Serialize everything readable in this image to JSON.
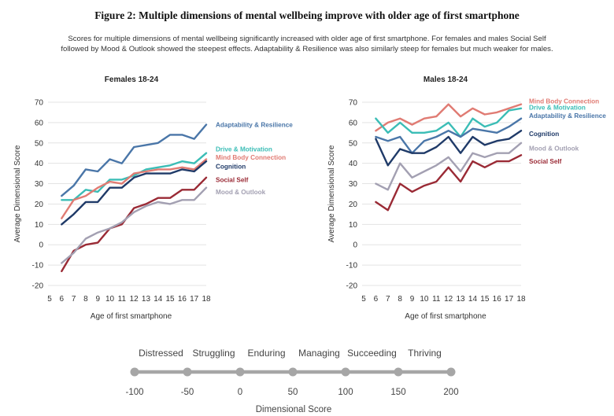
{
  "figure": {
    "title": "Figure 2:  Multiple dimensions of mental wellbeing improve with older age of first smartphone",
    "caption_line1": "Scores for multiple dimensions of mental wellbeing significantly increased with older age of first smartphone. For females and males Social Self",
    "caption_line2": "followed by Mood & Outlook showed the steepest effects. Adaptability & Resilience was also similarly steep for females but much weaker for males."
  },
  "chart_data": [
    {
      "type": "line",
      "title": "Females 18-24",
      "xlabel": "Age of first smartphone",
      "ylabel": "Average Dimensional Score",
      "x_ticks": [
        5,
        6,
        7,
        8,
        9,
        10,
        11,
        12,
        13,
        14,
        15,
        16,
        17,
        18
      ],
      "y_ticks": [
        70,
        60,
        50,
        40,
        30,
        20,
        10,
        0,
        -10,
        -20
      ],
      "xlim": [
        5,
        18
      ],
      "ylim": [
        -20,
        70
      ],
      "x": [
        6,
        7,
        8,
        9,
        10,
        11,
        12,
        13,
        14,
        15,
        16,
        17,
        18
      ],
      "series": [
        {
          "name": "Adaptability & Resilience",
          "color": "#4a76a8",
          "values": [
            24,
            29,
            37,
            36,
            42,
            40,
            48,
            49,
            50,
            54,
            54,
            52,
            59
          ]
        },
        {
          "name": "Drive & Motivation",
          "color": "#3bbdb6",
          "values": [
            22,
            22,
            27,
            26,
            32,
            32,
            34,
            37,
            38,
            39,
            41,
            40,
            45
          ]
        },
        {
          "name": "Mind Body Connection",
          "color": "#e07b73",
          "values": [
            13,
            22,
            24,
            28,
            31,
            30,
            35,
            36,
            37,
            37,
            38,
            37,
            42
          ]
        },
        {
          "name": "Cognition",
          "color": "#1f3a68",
          "values": [
            10,
            15,
            21,
            21,
            28,
            28,
            33,
            35,
            35,
            35,
            37,
            36,
            41
          ]
        },
        {
          "name": "Social Self",
          "color": "#9a2a35",
          "values": [
            -13,
            -3,
            0,
            1,
            8,
            10,
            18,
            20,
            23,
            23,
            27,
            27,
            33
          ]
        },
        {
          "name": "Mood & Outlook",
          "color": "#a3a0b2",
          "values": [
            -9,
            -4,
            3,
            6,
            8,
            11,
            16,
            19,
            21,
            20,
            22,
            22,
            28
          ]
        }
      ],
      "labels": [
        {
          "name": "Adaptability & Resilience",
          "color": "#4a76a8",
          "at": 59
        },
        {
          "name": "Drive & Motivation",
          "color": "#3bbdb6",
          "at": 47
        },
        {
          "name": "Mind Body Connection",
          "color": "#e07b73",
          "at": 43
        },
        {
          "name": "Cognition",
          "color": "#1f3a68",
          "at": 38.5
        },
        {
          "name": "Social Self",
          "color": "#9a2a35",
          "at": 32
        },
        {
          "name": "Mood & Outlook",
          "color": "#a3a0b2",
          "at": 26
        }
      ]
    },
    {
      "type": "line",
      "title": "Males 18-24",
      "xlabel": "Age of first smartphone",
      "ylabel": "Average Dimensional Score",
      "x_ticks": [
        5,
        6,
        7,
        8,
        9,
        10,
        11,
        12,
        13,
        14,
        15,
        16,
        17,
        18
      ],
      "y_ticks": [
        70,
        60,
        50,
        40,
        30,
        20,
        10,
        0,
        -10,
        -20
      ],
      "xlim": [
        5,
        18
      ],
      "ylim": [
        -20,
        70
      ],
      "x": [
        6,
        7,
        8,
        9,
        10,
        11,
        12,
        13,
        14,
        15,
        16,
        17,
        18
      ],
      "series": [
        {
          "name": "Mind Body Connection",
          "color": "#e07b73",
          "values": [
            56,
            60,
            62,
            59,
            62,
            63,
            69,
            63,
            67,
            64,
            65,
            67,
            69
          ]
        },
        {
          "name": "Drive & Motivation",
          "color": "#3bbdb6",
          "values": [
            62,
            55,
            60,
            55,
            55,
            56,
            60,
            53,
            62,
            58,
            60,
            66,
            67
          ]
        },
        {
          "name": "Adaptability & Resilience",
          "color": "#4a76a8",
          "values": [
            53,
            51,
            53,
            45,
            51,
            53,
            56,
            53,
            57,
            56,
            55,
            58,
            62
          ]
        },
        {
          "name": "Cognition",
          "color": "#1f3a68",
          "values": [
            52,
            39,
            47,
            45,
            45,
            48,
            53,
            45,
            53,
            49,
            51,
            52,
            56
          ]
        },
        {
          "name": "Mood & Outlook",
          "color": "#a3a0b2",
          "values": [
            30,
            27,
            40,
            33,
            36,
            39,
            43,
            36,
            45,
            43,
            45,
            45,
            50
          ]
        },
        {
          "name": "Social Self",
          "color": "#9a2a35",
          "values": [
            21,
            17,
            30,
            26,
            29,
            31,
            38,
            31,
            41,
            38,
            41,
            41,
            44
          ]
        }
      ],
      "labels": [
        {
          "name": "Mind Body Connection",
          "color": "#e07b73",
          "at": 70.5
        },
        {
          "name": "Drive & Motivation",
          "color": "#3bbdb6",
          "at": 67.5
        },
        {
          "name": "Adaptability & Resilience",
          "color": "#4a76a8",
          "at": 63.5
        },
        {
          "name": "Cognition",
          "color": "#1f3a68",
          "at": 54.5
        },
        {
          "name": "Mood & Outlook",
          "color": "#a3a0b2",
          "at": 47.5
        },
        {
          "name": "Social Self",
          "color": "#9a2a35",
          "at": 41
        }
      ]
    }
  ],
  "scale": {
    "labels": [
      "Distressed",
      "Struggling",
      "Enduring",
      "Managing",
      "Succeeding",
      "Thriving"
    ],
    "ticks": [
      -100,
      -50,
      0,
      50,
      100,
      150,
      200
    ],
    "title": "Dimensional Score",
    "color": "#a6a6a6"
  }
}
